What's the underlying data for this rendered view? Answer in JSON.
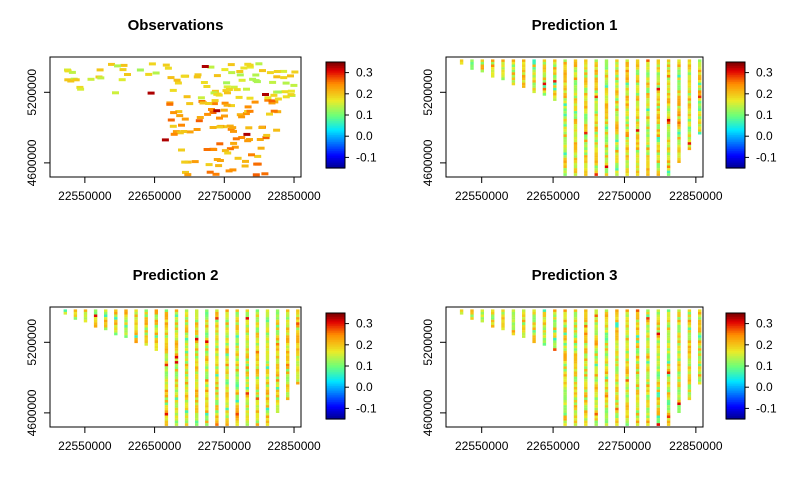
{
  "chart_data": [
    {
      "type": "heatmap",
      "title": "Observations",
      "pattern": "scattered",
      "xlim": [
        22500000,
        22860000
      ],
      "ylim": [
        4480000,
        5500000
      ],
      "x_ticks": [
        22550000,
        22650000,
        22750000,
        22850000
      ],
      "y_ticks": [
        4600000,
        5200000
      ],
      "legend": {
        "ticks": [
          0.3,
          0.2,
          0.1,
          0.0,
          -0.1
        ],
        "range": [
          -0.15,
          0.35
        ],
        "position": "right"
      },
      "value_regions": [
        {
          "x_range": [
            22520000,
            22860000
          ],
          "y_range": [
            5150000,
            5450000
          ],
          "level": 0.17
        },
        {
          "x_range": [
            22660000,
            22860000
          ],
          "y_range": [
            4500000,
            5150000
          ],
          "level": 0.23
        }
      ]
    },
    {
      "type": "heatmap",
      "title": "Prediction 1",
      "pattern": "columns",
      "xlim": [
        22500000,
        22860000
      ],
      "ylim": [
        4480000,
        5500000
      ],
      "x_ticks": [
        22550000,
        22650000,
        22750000,
        22850000
      ],
      "y_ticks": [
        4600000,
        5200000
      ],
      "legend": {
        "ticks": [
          0.3,
          0.2,
          0.1,
          0.0,
          -0.1
        ],
        "range": [
          -0.15,
          0.35
        ],
        "position": "right"
      },
      "value_regions": [
        {
          "x_range": [
            22500000,
            22860000
          ],
          "y_range": [
            4500000,
            5480000
          ],
          "level": 0.17
        }
      ]
    },
    {
      "type": "heatmap",
      "title": "Prediction 2",
      "pattern": "columns",
      "xlim": [
        22500000,
        22860000
      ],
      "ylim": [
        4480000,
        5500000
      ],
      "x_ticks": [
        22550000,
        22650000,
        22750000,
        22850000
      ],
      "y_ticks": [
        4600000,
        5200000
      ],
      "legend": {
        "ticks": [
          0.3,
          0.2,
          0.1,
          0.0,
          -0.1
        ],
        "range": [
          -0.15,
          0.35
        ],
        "position": "right"
      },
      "value_regions": [
        {
          "x_range": [
            22500000,
            22860000
          ],
          "y_range": [
            4500000,
            5480000
          ],
          "level": 0.17
        }
      ]
    },
    {
      "type": "heatmap",
      "title": "Prediction 3",
      "pattern": "columns",
      "xlim": [
        22500000,
        22860000
      ],
      "ylim": [
        4480000,
        5500000
      ],
      "x_ticks": [
        22550000,
        22650000,
        22750000,
        22850000
      ],
      "y_ticks": [
        4600000,
        5200000
      ],
      "legend": {
        "ticks": [
          0.3,
          0.2,
          0.1,
          0.0,
          -0.1
        ],
        "range": [
          -0.15,
          0.35
        ],
        "position": "right"
      },
      "value_regions": [
        {
          "x_range": [
            22500000,
            22860000
          ],
          "y_range": [
            4500000,
            5480000
          ],
          "level": 0.17
        }
      ]
    }
  ]
}
